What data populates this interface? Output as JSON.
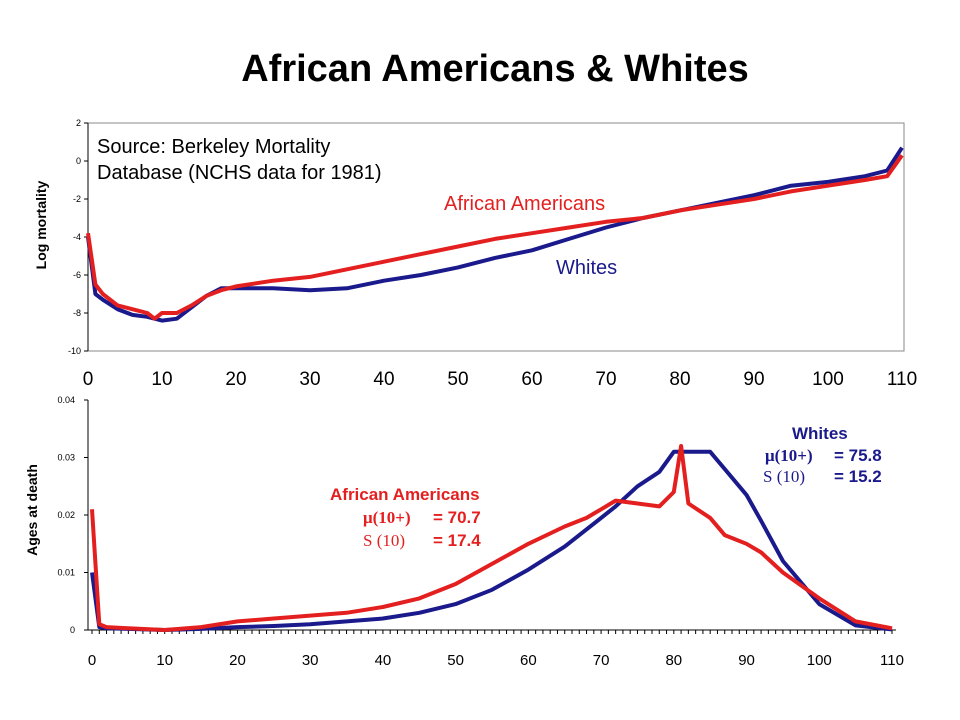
{
  "title": "African Americans & Whites",
  "colors": {
    "african_americans": "#e41f1f",
    "whites": "#1a1a8c"
  },
  "chart_data": [
    {
      "type": "line",
      "ylabel": "Log mortality",
      "xlim": [
        0,
        110
      ],
      "ylim": [
        -10,
        2
      ],
      "x_ticks": [
        "0",
        "10",
        "20",
        "30",
        "40",
        "50",
        "60",
        "70",
        "80",
        "90",
        "100",
        "110"
      ],
      "y_ticks": [
        "2",
        "0",
        "-2",
        "-4",
        "-6",
        "-8",
        "-10"
      ],
      "grid": false,
      "annotations": [
        "Source: Berkeley Mortality",
        "Database (NCHS data for 1981)"
      ],
      "series": [
        {
          "name": "African Americans",
          "x": [
            0,
            1,
            2,
            4,
            6,
            8,
            9,
            10,
            12,
            14,
            16,
            18,
            20,
            25,
            30,
            35,
            40,
            45,
            50,
            55,
            60,
            65,
            70,
            75,
            80,
            85,
            90,
            95,
            100,
            105,
            108,
            110
          ],
          "y": [
            -3.8,
            -6.5,
            -7.0,
            -7.6,
            -7.8,
            -8.0,
            -8.3,
            -8.0,
            -8.0,
            -7.6,
            -7.1,
            -6.8,
            -6.6,
            -6.3,
            -6.1,
            -5.7,
            -5.3,
            -4.9,
            -4.5,
            -4.1,
            -3.8,
            -3.5,
            -3.2,
            -3.0,
            -2.6,
            -2.3,
            -2.0,
            -1.6,
            -1.3,
            -1.0,
            -0.8,
            0.3
          ]
        },
        {
          "name": "Whites",
          "x": [
            0,
            1,
            2,
            4,
            6,
            8,
            9,
            10,
            12,
            14,
            16,
            18,
            20,
            25,
            30,
            35,
            40,
            45,
            50,
            55,
            60,
            65,
            70,
            75,
            80,
            85,
            90,
            95,
            100,
            105,
            108,
            110
          ],
          "y": [
            -4.0,
            -7.0,
            -7.3,
            -7.8,
            -8.1,
            -8.2,
            -8.3,
            -8.4,
            -8.3,
            -7.7,
            -7.1,
            -6.7,
            -6.7,
            -6.7,
            -6.8,
            -6.7,
            -6.3,
            -6.0,
            -5.6,
            -5.1,
            -4.7,
            -4.1,
            -3.5,
            -3.0,
            -2.6,
            -2.2,
            -1.8,
            -1.3,
            -1.1,
            -0.8,
            -0.5,
            0.7
          ]
        }
      ],
      "labels": {
        "african_americans": "African Americans",
        "whites": "Whites"
      }
    },
    {
      "type": "line",
      "ylabel": "Ages at death",
      "xlim": [
        0,
        110
      ],
      "ylim": [
        0,
        0.04
      ],
      "x_ticks": [
        "0",
        "10",
        "20",
        "30",
        "40",
        "50",
        "60",
        "70",
        "80",
        "90",
        "100",
        "110"
      ],
      "y_ticks": [
        "0.04",
        "0.03",
        "0.02",
        "0.01",
        "0"
      ],
      "grid": false,
      "series": [
        {
          "name": "African Americans",
          "x": [
            0,
            1,
            2,
            5,
            10,
            15,
            20,
            25,
            30,
            35,
            40,
            45,
            50,
            55,
            60,
            65,
            68,
            70,
            72,
            75,
            78,
            80,
            81,
            82,
            85,
            87,
            90,
            92,
            95,
            100,
            105,
            110
          ],
          "y": [
            0.021,
            0.001,
            0.0005,
            0.0003,
            0,
            0.0005,
            0.0015,
            0.002,
            0.0025,
            0.003,
            0.004,
            0.0055,
            0.008,
            0.0115,
            0.015,
            0.018,
            0.0195,
            0.021,
            0.0225,
            0.022,
            0.0215,
            0.024,
            0.032,
            0.022,
            0.0195,
            0.0165,
            0.015,
            0.0135,
            0.01,
            0.0055,
            0.0015,
            0.0003
          ]
        },
        {
          "name": "Whites",
          "x": [
            0,
            1,
            2,
            5,
            10,
            15,
            20,
            25,
            30,
            35,
            40,
            45,
            50,
            55,
            60,
            65,
            70,
            72,
            75,
            78,
            80,
            82,
            85,
            87,
            90,
            92,
            95,
            100,
            105,
            110
          ],
          "y": [
            0.01,
            0.0005,
            0.0003,
            0.0002,
            0,
            0.0002,
            0.0005,
            0.0007,
            0.001,
            0.0015,
            0.002,
            0.003,
            0.0045,
            0.007,
            0.0105,
            0.0145,
            0.0195,
            0.0215,
            0.025,
            0.0275,
            0.031,
            0.031,
            0.031,
            0.028,
            0.0235,
            0.019,
            0.012,
            0.0045,
            0.0008,
            0.0001
          ]
        }
      ],
      "stats": {
        "african_americans": {
          "name": "African Americans",
          "mu_symbol": "μ(10+)",
          "mu_value": "= 70.7",
          "s_symbol": "S (10)",
          "s_value": "= 17.4"
        },
        "whites": {
          "name": "Whites",
          "mu_symbol": "μ(10+)",
          "mu_value": "= 75.8",
          "s_symbol": "S (10)",
          "s_value": "= 15.2"
        }
      }
    }
  ]
}
